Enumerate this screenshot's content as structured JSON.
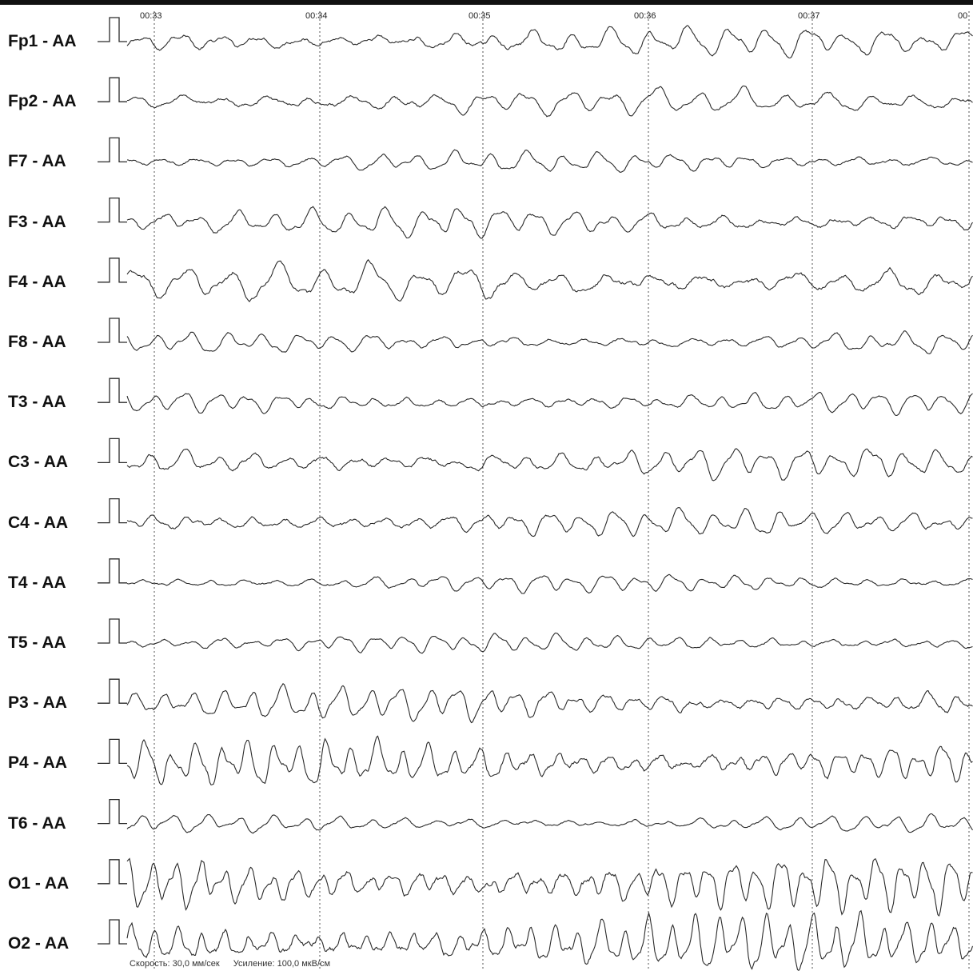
{
  "chart_data": {
    "type": "line",
    "title": "",
    "xlabel": "",
    "ylabel": "",
    "x_ticks": [
      "00:33",
      "00:34",
      "00:35",
      "00:36",
      "00:37",
      "00"
    ],
    "x_range_seconds": [
      32.8,
      38.0
    ],
    "grid": "vertical dashed lines at each second",
    "montage_reference": "AA",
    "channels": [
      {
        "name": "Fp1 - AA",
        "amplitude": 1.0,
        "dominant_hz": 4.2
      },
      {
        "name": "Fp2 - AA",
        "amplitude": 0.9,
        "dominant_hz": 3.8
      },
      {
        "name": "F7 - AA",
        "amplitude": 0.7,
        "dominant_hz": 4.5
      },
      {
        "name": "F3 - AA",
        "amplitude": 1.0,
        "dominant_hz": 4.4
      },
      {
        "name": "F4 - AA",
        "amplitude": 1.3,
        "dominant_hz": 3.5
      },
      {
        "name": "F8 - AA",
        "amplitude": 0.7,
        "dominant_hz": 4.6
      },
      {
        "name": "T3 - AA",
        "amplitude": 0.7,
        "dominant_hz": 5.2
      },
      {
        "name": "C3 - AA",
        "amplitude": 1.0,
        "dominant_hz": 4.8
      },
      {
        "name": "C4 - AA",
        "amplitude": 0.9,
        "dominant_hz": 5.0
      },
      {
        "name": "T4 - AA",
        "amplitude": 0.6,
        "dominant_hz": 5.0
      },
      {
        "name": "T5 - AA",
        "amplitude": 0.6,
        "dominant_hz": 5.4
      },
      {
        "name": "P3 - AA",
        "amplitude": 1.1,
        "dominant_hz": 5.6
      },
      {
        "name": "P4 - AA",
        "amplitude": 1.5,
        "dominant_hz": 6.4
      },
      {
        "name": "T6 - AA",
        "amplitude": 0.6,
        "dominant_hz": 5.0
      },
      {
        "name": "O1 - AA",
        "amplitude": 1.8,
        "dominant_hz": 6.8
      },
      {
        "name": "O2 - AA",
        "amplitude": 1.9,
        "dominant_hz": 7.0
      }
    ],
    "colors": {
      "trace": "#2a2a2a",
      "label": "#111111",
      "grid": "#555555"
    }
  },
  "footer": {
    "speed": "Скорость: 30,0 мм/сек",
    "gain": "Усиление: 100,0 мкВ/см"
  }
}
